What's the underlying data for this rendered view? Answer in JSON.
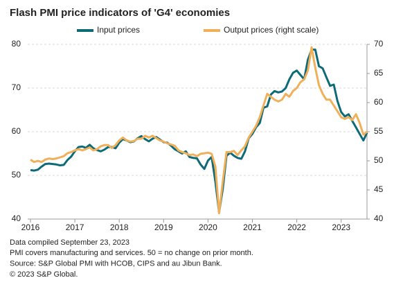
{
  "chart_data": {
    "type": "line",
    "title": "Flash PMI price indicators of 'G4' economies",
    "categories": [
      "2016",
      null,
      null,
      null,
      null,
      null,
      null,
      null,
      null,
      null,
      null,
      null,
      "2017",
      null,
      null,
      null,
      null,
      null,
      null,
      null,
      null,
      null,
      null,
      null,
      "2018",
      null,
      null,
      null,
      null,
      null,
      null,
      null,
      null,
      null,
      null,
      null,
      "2019",
      null,
      null,
      null,
      null,
      null,
      null,
      null,
      null,
      null,
      null,
      null,
      "2020",
      null,
      null,
      null,
      null,
      null,
      null,
      null,
      null,
      null,
      null,
      null,
      "2021",
      null,
      null,
      null,
      null,
      null,
      null,
      null,
      null,
      null,
      null,
      null,
      "2022",
      null,
      null,
      null,
      null,
      null,
      null,
      null,
      null,
      null,
      null,
      null,
      "2023",
      null,
      null,
      null,
      null,
      null,
      null,
      null
    ],
    "series": [
      {
        "name": "Input prices",
        "color": "#0d6b78",
        "values": [
          51.2,
          51.1,
          51.3,
          52,
          52.6,
          52.7,
          52.6,
          52.5,
          52.3,
          52.4,
          53.5,
          54.3,
          55.5,
          56.5,
          56.6,
          56.3,
          57,
          56.2,
          55.8,
          55.5,
          55.9,
          56.5,
          56.5,
          56.2,
          57.5,
          58.3,
          58,
          57.6,
          57.8,
          58.5,
          59,
          58.3,
          57.8,
          58.4,
          58.8,
          58.2,
          57.6,
          57.5,
          56.8,
          56,
          55.5,
          55,
          55.5,
          54.2,
          54,
          53.9,
          52.5,
          51.5,
          53.4,
          54.2,
          48.5,
          41.5,
          47,
          54.5,
          55.2,
          54.5,
          54,
          53.8,
          55.5,
          58.5,
          59.5,
          61,
          62,
          65.5,
          65.8,
          68.5,
          69.3,
          69,
          69.2,
          70,
          72,
          73.5,
          74,
          73,
          72,
          76.5,
          78.8,
          78.8,
          75,
          74.5,
          72.5,
          70.5,
          70.8,
          67,
          64.5,
          63.5,
          64,
          62.5,
          61,
          59.5,
          58,
          59.8
        ]
      },
      {
        "name": "Output prices (right scale)",
        "color": "#f0b05a",
        "axis": "y2",
        "values": [
          50.2,
          49.8,
          50,
          49.8,
          50.2,
          50.4,
          50.3,
          50.4,
          50.6,
          50.8,
          51.3,
          51.5,
          51.8,
          52,
          51.8,
          52,
          52.3,
          51.8,
          52,
          52.5,
          52.7,
          52.7,
          52.2,
          52.7,
          53.5,
          54,
          53.5,
          53.3,
          53.4,
          53.8,
          53.8,
          54.3,
          54,
          54.3,
          53.9,
          53.5,
          53.3,
          53,
          52.8,
          52.6,
          51.8,
          51.5,
          51.3,
          51,
          51.1,
          50.8,
          51.2,
          51.3,
          51.4,
          51.2,
          49,
          41,
          46.5,
          51.5,
          51.5,
          51.7,
          51,
          51.8,
          52.5,
          54,
          55,
          56,
          57.5,
          59.5,
          61.5,
          61,
          60.5,
          60.2,
          60.5,
          61.5,
          61,
          62,
          62.5,
          63.5,
          64,
          65.5,
          69.5,
          66,
          63,
          61.5,
          60.5,
          60.5,
          59.5,
          58.5,
          57.5,
          57.2,
          57.5,
          57,
          58,
          56.5,
          54.5,
          55
        ]
      }
    ],
    "ylim": [
      40,
      80
    ],
    "yticks": [
      40,
      50,
      60,
      70,
      80
    ],
    "y2lim": [
      40,
      70
    ],
    "y2ticks": [
      40,
      45,
      50,
      55,
      60,
      65,
      70
    ],
    "grid": true,
    "legend": "top",
    "notes": [
      "Data compiled September 23, 2023",
      "PMI covers manufacturing and services. 50 = no change on prior month.",
      "Source: S&P Global PMI with HCOB, CIPS and au Jibun Bank.",
      "© 2023 S&P Global."
    ]
  }
}
